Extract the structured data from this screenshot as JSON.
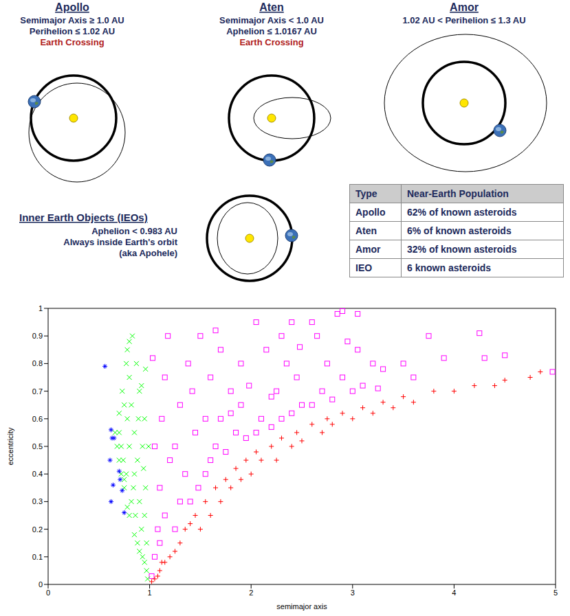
{
  "diagram": {
    "panels": [
      {
        "title": "Apollo",
        "lines": [
          "Semimajor Axis ≥ 1.0 AU",
          "Perihelion ≤ 1.02 AU"
        ],
        "note": "Earth Crossing"
      },
      {
        "title": "Aten",
        "lines": [
          "Semimajor Axis < 1.0 AU",
          "Aphelion ≤ 1.0167 AU"
        ],
        "note": "Earth Crossing"
      },
      {
        "title": "Amor",
        "lines": [
          "1.02 AU < Perihelion ≤ 1.3 AU"
        ]
      },
      {
        "title": "Inner Earth Objects (IEOs)",
        "lines": [
          "Aphelion < 0.983 AU",
          "Always inside Earth's orbit",
          "(aka Apohele)"
        ]
      }
    ]
  },
  "table": {
    "header": [
      "Type",
      "Near-Earth Population"
    ],
    "rows": [
      [
        "Apollo",
        "62% of known asteroids"
      ],
      [
        "Aten",
        "6% of known asteroids"
      ],
      [
        "Amor",
        "32% of known asteroids"
      ],
      [
        "IEO",
        "6 known asteroids"
      ]
    ]
  },
  "chart_data": {
    "type": "scatter",
    "x_label": "semimajor axis",
    "y_label": "eccentricity",
    "xlim": [
      0,
      5
    ],
    "ylim": [
      0,
      1
    ],
    "xticks": [
      0,
      1,
      2,
      3,
      4,
      5
    ],
    "yticks": [
      0,
      0.1,
      0.2,
      0.3,
      0.4,
      0.5,
      0.6,
      0.7,
      0.8,
      0.9,
      1
    ],
    "grid": false,
    "series": [
      {
        "color": "#ff00ff",
        "marker": "square",
        "x": [
          1.02,
          1.05,
          1.08,
          1.1,
          1.05,
          1.12,
          1.15,
          1.03,
          1.18,
          1.2,
          1.15,
          1.1,
          1.25,
          1.3,
          1.35,
          1.4,
          1.45,
          1.3,
          1.38,
          1.48,
          1.25,
          1.42,
          1.5,
          1.55,
          1.6,
          1.65,
          1.7,
          1.75,
          1.8,
          1.85,
          1.9,
          1.95,
          1.6,
          1.7,
          1.8,
          1.9,
          1.55,
          1.65,
          1.98,
          2.05,
          2.1,
          2.2,
          2.25,
          2.3,
          2.35,
          2.4,
          2.45,
          2.15,
          2.3,
          2.5,
          2.05,
          2.4,
          2.2,
          2.48,
          2.6,
          2.7,
          2.75,
          2.8,
          2.9,
          2.95,
          3.0,
          3.05,
          3.1,
          3.2,
          3.25,
          2.85,
          2.9,
          3.05,
          2.65,
          2.6,
          3.5,
          3.6,
          3.9,
          4.25,
          4.3,
          4.5,
          4.97,
          3.3,
          3.75
        ],
        "y": [
          0.03,
          0.1,
          0.2,
          0.35,
          0.5,
          0.6,
          0.75,
          0.82,
          0.9,
          0.45,
          0.25,
          0.15,
          0.2,
          0.3,
          0.4,
          0.3,
          0.55,
          0.65,
          0.8,
          0.35,
          0.5,
          0.7,
          0.9,
          0.4,
          0.45,
          0.5,
          0.6,
          0.48,
          0.7,
          0.55,
          0.8,
          0.53,
          0.75,
          0.85,
          0.62,
          0.65,
          0.6,
          0.92,
          0.72,
          0.55,
          0.6,
          0.57,
          0.7,
          0.6,
          0.8,
          0.62,
          0.75,
          0.85,
          0.9,
          0.65,
          0.95,
          0.95,
          0.68,
          0.86,
          0.65,
          0.7,
          0.8,
          0.67,
          0.75,
          0.88,
          0.7,
          0.85,
          0.72,
          0.8,
          0.71,
          0.98,
          0.99,
          0.98,
          0.9,
          0.95,
          0.8,
          0.75,
          0.82,
          0.91,
          0.82,
          0.83,
          0.77,
          0.78,
          0.9
        ]
      },
      {
        "color": "#00ff00",
        "marker": "x",
        "x": [
          0.98,
          0.97,
          0.95,
          0.93,
          0.9,
          0.92,
          0.95,
          0.88,
          0.85,
          0.86,
          0.9,
          0.8,
          0.82,
          0.84,
          0.96,
          0.78,
          0.75,
          0.77,
          0.88,
          0.93,
          0.72,
          0.74,
          0.8,
          0.85,
          0.95,
          0.7,
          0.72,
          0.78,
          0.82,
          0.9,
          0.68,
          0.7,
          0.75,
          0.8,
          0.87,
          0.92,
          0.66,
          0.7,
          0.73,
          0.78,
          0.8,
          0.83,
          0.77,
          0.75,
          0.97,
          0.94,
          0.89,
          0.85,
          0.99,
          0.96
        ],
        "y": [
          0.02,
          0.05,
          0.08,
          0.1,
          0.12,
          0.2,
          0.25,
          0.15,
          0.18,
          0.25,
          0.3,
          0.25,
          0.3,
          0.35,
          0.35,
          0.28,
          0.35,
          0.4,
          0.45,
          0.5,
          0.4,
          0.45,
          0.5,
          0.55,
          0.6,
          0.45,
          0.5,
          0.6,
          0.65,
          0.7,
          0.5,
          0.55,
          0.65,
          0.75,
          0.8,
          0.72,
          0.55,
          0.62,
          0.7,
          0.85,
          0.88,
          0.9,
          0.8,
          0.38,
          0.15,
          0.42,
          0.6,
          0.4,
          0.5,
          0.78
        ]
      },
      {
        "color": "#0000ff",
        "marker": "star",
        "x": [
          0.56,
          0.62,
          0.63,
          0.61,
          0.64,
          0.62,
          0.7,
          0.71,
          0.73,
          0.75,
          0.65
        ],
        "y": [
          0.79,
          0.56,
          0.53,
          0.45,
          0.36,
          0.3,
          0.41,
          0.38,
          0.34,
          0.26,
          0.53
        ]
      },
      {
        "color": "#ff0000",
        "marker": "plus",
        "x": [
          1.05,
          1.1,
          1.15,
          1.2,
          1.25,
          1.3,
          1.35,
          1.4,
          1.45,
          1.5,
          1.55,
          1.6,
          1.65,
          1.7,
          1.75,
          1.8,
          1.85,
          1.9,
          1.95,
          2.0,
          2.05,
          2.1,
          2.2,
          2.25,
          2.3,
          2.4,
          2.45,
          2.5,
          2.6,
          2.7,
          2.75,
          2.8,
          2.9,
          3.0,
          3.1,
          3.2,
          3.3,
          3.4,
          3.5,
          3.6,
          3.8,
          4.0,
          4.2,
          4.4,
          4.5,
          4.75,
          4.85,
          1.02,
          1.08,
          1.12
        ],
        "y": [
          0.02,
          0.05,
          0.08,
          0.1,
          0.12,
          0.15,
          0.2,
          0.22,
          0.25,
          0.2,
          0.3,
          0.25,
          0.35,
          0.3,
          0.38,
          0.35,
          0.42,
          0.38,
          0.45,
          0.4,
          0.48,
          0.45,
          0.5,
          0.45,
          0.53,
          0.5,
          0.55,
          0.52,
          0.58,
          0.55,
          0.6,
          0.58,
          0.62,
          0.6,
          0.64,
          0.62,
          0.66,
          0.64,
          0.68,
          0.66,
          0.7,
          0.7,
          0.72,
          0.72,
          0.74,
          0.75,
          0.77,
          0.01,
          0.03,
          0.08
        ]
      }
    ]
  }
}
